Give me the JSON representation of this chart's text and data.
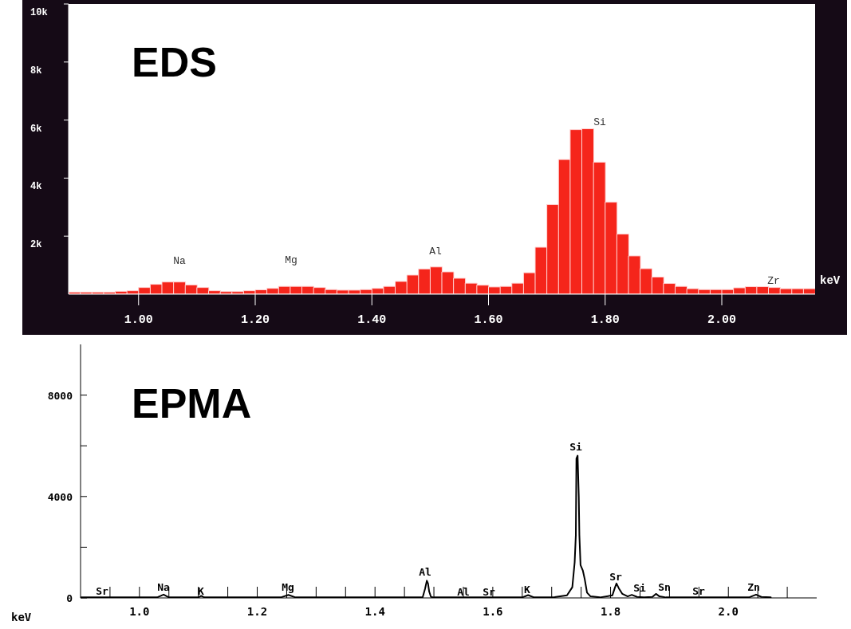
{
  "chart_data": [
    {
      "type": "histogram",
      "title": "EDS",
      "xlabel": "keV",
      "color": "#f5251b",
      "bins": [
        0.88,
        0.9,
        0.92,
        0.94,
        0.96,
        0.98,
        1.0,
        1.02,
        1.04,
        1.06,
        1.08,
        1.1,
        1.12,
        1.14,
        1.16,
        1.18,
        1.2,
        1.22,
        1.24,
        1.26,
        1.28,
        1.3,
        1.32,
        1.34,
        1.36,
        1.38,
        1.4,
        1.42,
        1.44,
        1.46,
        1.48,
        1.5,
        1.52,
        1.54,
        1.56,
        1.58,
        1.6,
        1.62,
        1.64,
        1.66,
        1.68,
        1.7,
        1.72,
        1.74,
        1.76,
        1.78,
        1.8,
        1.82,
        1.84,
        1.86,
        1.88,
        1.9,
        1.92,
        1.94,
        1.96,
        1.98,
        2.0,
        2.02,
        2.04,
        2.06,
        2.08,
        2.1,
        2.12,
        2.14,
        2.16
      ],
      "values": [
        70,
        70,
        70,
        70,
        100,
        120,
        230,
        340,
        420,
        420,
        320,
        230,
        120,
        90,
        90,
        120,
        150,
        200,
        270,
        270,
        270,
        230,
        160,
        140,
        140,
        160,
        200,
        270,
        440,
        660,
        870,
        940,
        770,
        550,
        380,
        310,
        250,
        270,
        380,
        740,
        1620,
        3090,
        4640,
        5670,
        5700,
        4550,
        3170,
        2070,
        1320,
        880,
        590,
        370,
        270,
        190,
        160,
        160,
        160,
        220,
        260,
        260,
        230,
        190,
        190,
        190
      ],
      "xlim": [
        0.88,
        2.16
      ],
      "ylim": [
        0,
        10000
      ],
      "xticks": [
        {
          "value": 1.0,
          "label": "1.00"
        },
        {
          "value": 1.2,
          "label": "1.20"
        },
        {
          "value": 1.4,
          "label": "1.40"
        },
        {
          "value": 1.6,
          "label": "1.60"
        },
        {
          "value": 1.8,
          "label": "1.80"
        },
        {
          "value": 2.0,
          "label": "2.00"
        }
      ],
      "yticks": [
        {
          "value": 2000,
          "label": "2k"
        },
        {
          "value": 4000,
          "label": "4k"
        },
        {
          "value": 6000,
          "label": "6k"
        },
        {
          "value": 8000,
          "label": "8k"
        },
        {
          "value": 10000,
          "label": "10k"
        }
      ],
      "annotations": [
        "Na",
        "Mg",
        "Al",
        "Si",
        "Zr"
      ]
    },
    {
      "type": "line",
      "title": "EPMA",
      "xlabel": "keV",
      "color": "#000000",
      "x": [
        0.9,
        1.03,
        1.041,
        1.05,
        1.1,
        1.105,
        1.11,
        1.24,
        1.253,
        1.265,
        1.47,
        1.481,
        1.485,
        1.488,
        1.49,
        1.492,
        1.495,
        1.5,
        1.65,
        1.66,
        1.67,
        1.705,
        1.726,
        1.735,
        1.739,
        1.741,
        1.742,
        1.744,
        1.746,
        1.747,
        1.749,
        1.753,
        1.756,
        1.76,
        1.766,
        1.782,
        1.803,
        1.807,
        1.81,
        1.814,
        1.82,
        1.829,
        1.836,
        1.845,
        1.857,
        1.871,
        1.877,
        1.883,
        1.894,
        2.035,
        2.047,
        2.056,
        2.072
      ],
      "values": [
        20,
        20,
        130,
        20,
        20,
        80,
        20,
        20,
        120,
        20,
        20,
        30,
        360,
        680,
        570,
        250,
        40,
        20,
        20,
        110,
        20,
        30,
        100,
        420,
        1400,
        2480,
        5500,
        5610,
        3990,
        2480,
        1290,
        1070,
        750,
        210,
        60,
        20,
        100,
        380,
        570,
        380,
        160,
        60,
        120,
        40,
        20,
        40,
        160,
        60,
        20,
        20,
        130,
        40,
        20
      ],
      "xlim": [
        0.9,
        2.15
      ],
      "ylim": [
        0,
        10000
      ],
      "xticks": [
        {
          "value": 0.95,
          "label": null
        },
        {
          "value": 1.0,
          "label": "1.0"
        },
        {
          "value": 1.05,
          "label": null
        },
        {
          "value": 1.1,
          "label": null
        },
        {
          "value": 1.15,
          "label": null
        },
        {
          "value": 1.2,
          "label": "1.2"
        },
        {
          "value": 1.25,
          "label": null
        },
        {
          "value": 1.3,
          "label": null
        },
        {
          "value": 1.35,
          "label": null
        },
        {
          "value": 1.4,
          "label": "1.4"
        },
        {
          "value": 1.45,
          "label": null
        },
        {
          "value": 1.5,
          "label": null
        },
        {
          "value": 1.55,
          "label": null
        },
        {
          "value": 1.6,
          "label": "1.6"
        },
        {
          "value": 1.65,
          "label": null
        },
        {
          "value": 1.7,
          "label": null
        },
        {
          "value": 1.75,
          "label": null
        },
        {
          "value": 1.8,
          "label": "1.8"
        },
        {
          "value": 1.85,
          "label": null
        },
        {
          "value": 1.9,
          "label": null
        },
        {
          "value": 1.95,
          "label": null
        },
        {
          "value": 2.0,
          "label": "2.0"
        },
        {
          "value": 2.05,
          "label": null
        },
        {
          "value": 2.1,
          "label": null
        }
      ],
      "yticks": [
        0,
        {
          "value": 2000,
          "label": null
        },
        4000,
        {
          "value": 6000,
          "label": null
        },
        8000
      ],
      "annotations": [
        "Sr",
        "Na",
        "K",
        "Mg",
        "Al",
        "Al",
        "Sr",
        "K",
        "Si",
        "Sr",
        "Si",
        "Sn",
        "Sr",
        "Zn"
      ]
    }
  ]
}
